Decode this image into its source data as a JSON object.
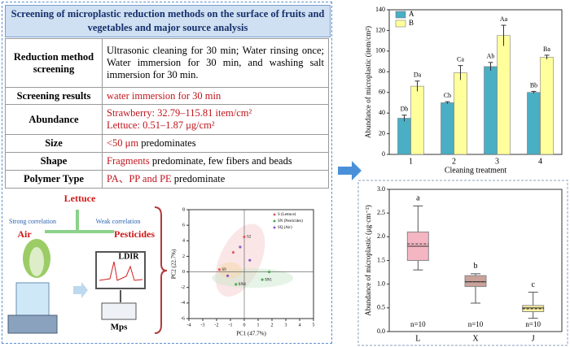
{
  "header": {
    "title": "Screening of microplastic reduction methods on the surface of fruits and vegetables and major source analysis"
  },
  "table": {
    "rows": [
      [
        "Reduction method screening",
        "Ultrasonic cleaning for 30 min; Water rinsing once; Water immersion for 30 min, and washing salt immersion for 30 min."
      ],
      [
        "Screening results",
        "water immersion for 30 min"
      ],
      [
        "Abundance",
        "Strawberry: 32.79–115.81 item/cm²",
        "Lettuce: 0.51–1.87 μg/cm²"
      ],
      [
        "Size",
        "<50 μm",
        "predominates"
      ],
      [
        "Shape",
        "Fragments",
        "predominate, few fibers and beads"
      ],
      [
        "Polymer Type",
        "PA、PP and PE",
        "predominate"
      ]
    ]
  },
  "illustration": {
    "lettuce": "Lettuce",
    "strong": "Strong correlation",
    "weak": "Weak correlation",
    "air": "Air",
    "pesticides": "Pesticides",
    "instrument": "LDIR",
    "particles": "Mps"
  },
  "pca_chart": {
    "type": "scatter",
    "xlabel": "PC1 (47.7%)",
    "ylabel": "PC2 (22.7%)",
    "xlim": [
      -4,
      5
    ],
    "ylim": [
      -6,
      8
    ],
    "xticks": [
      -4,
      -3,
      -2,
      -1,
      0,
      1,
      2,
      3,
      4,
      5
    ],
    "yticks": [
      -6,
      -4,
      -2,
      0,
      2,
      4,
      6,
      8
    ],
    "series": [
      {
        "name": "S (Lettuce)",
        "color": "#e06060",
        "x": [
          0,
          -1.8,
          -0.8
        ],
        "y": [
          4.5,
          0.3,
          2.5
        ],
        "labels": [
          "S2",
          "S9",
          null
        ]
      },
      {
        "name": "SN (Pesticides)",
        "color": "#4caf50",
        "x": [
          1.3,
          -0.6,
          1.8
        ],
        "y": [
          -1,
          -1.6,
          0
        ],
        "labels": [
          "SN1",
          "SN4",
          null
        ]
      },
      {
        "name": "SQ (Air)",
        "color": "#8a5cc8",
        "x": [
          0.4,
          -1.2,
          -0.3
        ],
        "y": [
          1.5,
          -0.5,
          3.2
        ],
        "labels": [
          null,
          null,
          null
        ]
      }
    ]
  },
  "bar_chart": {
    "type": "bar",
    "xlabel": "Cleaning treatment",
    "ylabel": "Abundance of microplastic (item/cm²)",
    "categories": [
      "1",
      "2",
      "3",
      "4"
    ],
    "ylim": [
      0,
      140
    ],
    "yticks": [
      0,
      20,
      40,
      60,
      80,
      100,
      120,
      140
    ],
    "series": [
      {
        "name": "A",
        "color": "#4aaec4",
        "values": [
          35,
          50,
          85,
          60
        ],
        "errors": [
          3,
          1,
          4,
          1
        ],
        "letters": [
          "Db",
          "Cb",
          "Ab",
          "Bb"
        ]
      },
      {
        "name": "B",
        "color": "#ffff9c",
        "values": [
          66,
          79,
          115,
          94
        ],
        "errors": [
          5,
          7,
          10,
          2
        ],
        "letters": [
          "Da",
          "Ca",
          "Aa",
          "Ba"
        ]
      }
    ]
  },
  "box_chart": {
    "type": "box",
    "ylabel": "Abundance of microplastic (μg·cm⁻²)",
    "categories": [
      "L",
      "X",
      "J"
    ],
    "ylim": [
      0,
      3
    ],
    "yticks": [
      {
        "value": 0,
        "label": "0.0"
      },
      {
        "value": 0.5,
        "label": "0.5"
      },
      {
        "value": 1,
        "label": "1.0"
      },
      {
        "value": 1.5,
        "label": "1.5"
      },
      {
        "value": 2,
        "label": "2.0"
      },
      {
        "value": 2.5,
        "label": "2.5"
      },
      {
        "value": 3,
        "label": "3.0"
      }
    ],
    "boxes": [
      {
        "min": 1.3,
        "q1": 1.5,
        "median": 1.8,
        "q3": 2.1,
        "max": 2.65,
        "mean": 1.85,
        "color": "#f4b6c2",
        "letter": "a",
        "n_label": "n=10"
      },
      {
        "min": 0.6,
        "q1": 0.95,
        "median": 1.05,
        "q3": 1.18,
        "max": 1.22,
        "mean": 1.05,
        "color": "#c9a29a",
        "letter": "b",
        "n_label": "n=10"
      },
      {
        "min": 0.28,
        "q1": 0.42,
        "median": 0.5,
        "q3": 0.55,
        "max": 0.83,
        "mean": 0.48,
        "color": "#fff3a0",
        "letter": "c",
        "n_label": "n=10"
      }
    ]
  }
}
